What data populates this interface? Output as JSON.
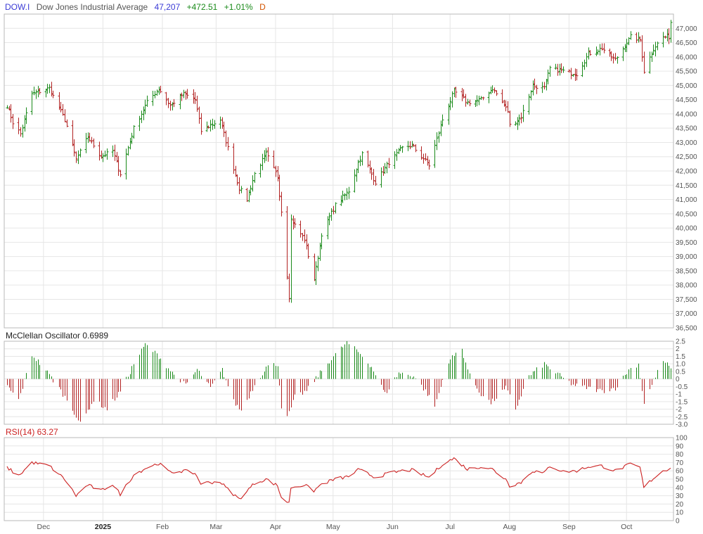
{
  "header": {
    "symbol": "DOW.I",
    "name": "Dow Jones Industrial Average",
    "last": "47,207",
    "change": "+472.51",
    "change_pct": "+1.01%",
    "period": "D"
  },
  "colors": {
    "up": "#1a8a1a",
    "down": "#b22222",
    "symbol": "#3b3bd6",
    "last": "#3b3bd6",
    "change": "#1a8a1a",
    "period": "#d35400",
    "rsi_line": "#cc2222",
    "rsi_title": "#cc2222"
  },
  "x_axis": {
    "labels": [
      {
        "text": "Dec",
        "day": 19
      },
      {
        "text": "2025",
        "day": 50,
        "bold": true
      },
      {
        "text": "Feb",
        "day": 81
      },
      {
        "text": "Mar",
        "day": 109
      },
      {
        "text": "Apr",
        "day": 140
      },
      {
        "text": "May",
        "day": 170
      },
      {
        "text": "Jun",
        "day": 201
      },
      {
        "text": "Jul",
        "day": 231
      },
      {
        "text": "Aug",
        "day": 262
      },
      {
        "text": "Sep",
        "day": 293
      },
      {
        "text": "Oct",
        "day": 323
      }
    ],
    "start_date": "2024-11-12",
    "end_date": "2025-10-24"
  },
  "chart_data": [
    {
      "type": "ohlc",
      "title": "Dow Jones Industrial Average",
      "ylim": [
        36500,
        47500
      ],
      "yticks": [
        "36,500",
        "37,000",
        "37,500",
        "38,000",
        "38,500",
        "39,000",
        "39,500",
        "40,000",
        "40,500",
        "41,000",
        "41,500",
        "42,000",
        "42,500",
        "43,000",
        "43,500",
        "44,000",
        "44,500",
        "45,000",
        "45,500",
        "46,000",
        "46,500",
        "47,000"
      ],
      "major_ticks": [
        "38,000",
        "40,000",
        "42,000",
        "44,000",
        "46,000"
      ],
      "anchors": [
        [
          "2024-11-12",
          44300
        ],
        [
          "2024-11-15",
          43700
        ],
        [
          "2024-11-19",
          43300
        ],
        [
          "2024-11-25",
          44700
        ],
        [
          "2024-12-04",
          44900
        ],
        [
          "2024-12-12",
          43800
        ],
        [
          "2024-12-18",
          42400
        ],
        [
          "2024-12-24",
          43200
        ],
        [
          "2024-12-31",
          42500
        ],
        [
          "2025-01-06",
          42700
        ],
        [
          "2025-01-10",
          41900
        ],
        [
          "2025-01-17",
          43500
        ],
        [
          "2025-01-24",
          44400
        ],
        [
          "2025-01-30",
          44900
        ],
        [
          "2025-02-05",
          44300
        ],
        [
          "2025-02-12",
          44700
        ],
        [
          "2025-02-18",
          44500
        ],
        [
          "2025-02-21",
          43400
        ],
        [
          "2025-03-03",
          43800
        ],
        [
          "2025-03-07",
          42800
        ],
        [
          "2025-03-13",
          41400
        ],
        [
          "2025-03-17",
          41000
        ],
        [
          "2025-03-21",
          41900
        ],
        [
          "2025-03-27",
          42600
        ],
        [
          "2025-04-02",
          41800
        ],
        [
          "2025-04-04",
          40600
        ],
        [
          "2025-04-08",
          37600
        ],
        [
          "2025-04-09",
          40300
        ],
        [
          "2025-04-16",
          39600
        ],
        [
          "2025-04-21",
          38200
        ],
        [
          "2025-04-25",
          39800
        ],
        [
          "2025-05-02",
          40800
        ],
        [
          "2025-05-09",
          41300
        ],
        [
          "2025-05-14",
          42300
        ],
        [
          "2025-05-16",
          42600
        ],
        [
          "2025-05-23",
          41600
        ],
        [
          "2025-05-30",
          42300
        ],
        [
          "2025-06-06",
          42800
        ],
        [
          "2025-06-11",
          42900
        ],
        [
          "2025-06-20",
          42200
        ],
        [
          "2025-06-27",
          43800
        ],
        [
          "2025-07-03",
          44800
        ],
        [
          "2025-07-10",
          44400
        ],
        [
          "2025-07-17",
          44500
        ],
        [
          "2025-07-23",
          44900
        ],
        [
          "2025-07-31",
          44100
        ],
        [
          "2025-08-01",
          43600
        ],
        [
          "2025-08-07",
          43900
        ],
        [
          "2025-08-13",
          45000
        ],
        [
          "2025-08-19",
          44900
        ],
        [
          "2025-08-22",
          45600
        ],
        [
          "2025-08-29",
          45500
        ],
        [
          "2025-09-05",
          45400
        ],
        [
          "2025-09-11",
          46100
        ],
        [
          "2025-09-18",
          46300
        ],
        [
          "2025-09-25",
          45900
        ],
        [
          "2025-10-03",
          46700
        ],
        [
          "2025-10-08",
          46600
        ],
        [
          "2025-10-10",
          45500
        ],
        [
          "2025-10-15",
          46300
        ],
        [
          "2025-10-20",
          46700
        ],
        [
          "2025-10-23",
          46700
        ],
        [
          "2025-10-24",
          47207
        ]
      ]
    },
    {
      "type": "histogram",
      "title": "McClellan Oscillator 0.6989",
      "ylim": [
        -3.0,
        2.5
      ],
      "yticks": [
        "2.5",
        "2",
        "1.5",
        "1.0",
        "0.5",
        "0",
        "-0.5",
        "-1",
        "-1.5",
        "-2",
        "-2.5",
        "-3.0"
      ],
      "anchors": [
        [
          "2024-11-12",
          -0.5
        ],
        [
          "2024-11-18",
          -1.4
        ],
        [
          "2024-11-25",
          1.6
        ],
        [
          "2024-12-02",
          0.6
        ],
        [
          "2024-12-09",
          -0.6
        ],
        [
          "2024-12-17",
          -2.2
        ],
        [
          "2024-12-20",
          -3.0
        ],
        [
          "2024-12-27",
          -1.4
        ],
        [
          "2025-01-03",
          -2.0
        ],
        [
          "2025-01-10",
          -0.8
        ],
        [
          "2025-01-17",
          1.0
        ],
        [
          "2025-01-23",
          2.3
        ],
        [
          "2025-01-30",
          1.5
        ],
        [
          "2025-02-06",
          0.4
        ],
        [
          "2025-02-13",
          -0.4
        ],
        [
          "2025-02-19",
          0.6
        ],
        [
          "2025-02-26",
          -0.6
        ],
        [
          "2025-03-04",
          0.6
        ],
        [
          "2025-03-10",
          -1.5
        ],
        [
          "2025-03-14",
          -2.1
        ],
        [
          "2025-03-21",
          -0.4
        ],
        [
          "2025-03-27",
          0.8
        ],
        [
          "2025-04-02",
          1.0
        ],
        [
          "2025-04-04",
          -1.8
        ],
        [
          "2025-04-07",
          -2.6
        ],
        [
          "2025-04-11",
          -1.2
        ],
        [
          "2025-04-17",
          -0.8
        ],
        [
          "2025-04-24",
          0.4
        ],
        [
          "2025-05-01",
          1.5
        ],
        [
          "2025-05-08",
          2.4
        ],
        [
          "2025-05-14",
          1.8
        ],
        [
          "2025-05-21",
          0.8
        ],
        [
          "2025-05-28",
          -1.0
        ],
        [
          "2025-06-04",
          0.4
        ],
        [
          "2025-06-12",
          0.2
        ],
        [
          "2025-06-18",
          -0.8
        ],
        [
          "2025-06-23",
          -1.8
        ],
        [
          "2025-06-30",
          1.2
        ],
        [
          "2025-07-07",
          2.0
        ],
        [
          "2025-07-11",
          0.2
        ],
        [
          "2025-07-17",
          -1.0
        ],
        [
          "2025-07-22",
          -1.6
        ],
        [
          "2025-07-30",
          -0.6
        ],
        [
          "2025-08-04",
          -2.0
        ],
        [
          "2025-08-11",
          0.2
        ],
        [
          "2025-08-19",
          1.0
        ],
        [
          "2025-08-25",
          0.4
        ],
        [
          "2025-09-03",
          -0.4
        ],
        [
          "2025-09-11",
          -0.6
        ],
        [
          "2025-09-18",
          -0.8
        ],
        [
          "2025-09-25",
          -0.6
        ],
        [
          "2025-10-02",
          0.6
        ],
        [
          "2025-10-07",
          1.0
        ],
        [
          "2025-10-10",
          -1.6
        ],
        [
          "2025-10-16",
          0.2
        ],
        [
          "2025-10-20",
          1.2
        ],
        [
          "2025-10-24",
          0.6989
        ]
      ]
    },
    {
      "type": "line",
      "title": "RSI(14) 63.27",
      "ylim": [
        0,
        100
      ],
      "yticks": [
        "100",
        "90",
        "80",
        "70",
        "60",
        "50",
        "40",
        "30",
        "20",
        "10",
        "0"
      ],
      "major_ticks": [
        "100",
        "70",
        "50",
        "30",
        "0"
      ],
      "anchors": [
        [
          "2024-11-12",
          64
        ],
        [
          "2024-11-18",
          54
        ],
        [
          "2024-11-25",
          70
        ],
        [
          "2024-12-04",
          66
        ],
        [
          "2024-12-12",
          50
        ],
        [
          "2024-12-18",
          30
        ],
        [
          "2024-12-24",
          43
        ],
        [
          "2024-12-31",
          36
        ],
        [
          "2025-01-06",
          44
        ],
        [
          "2025-01-10",
          32
        ],
        [
          "2025-01-17",
          55
        ],
        [
          "2025-01-24",
          64
        ],
        [
          "2025-01-30",
          69
        ],
        [
          "2025-02-05",
          58
        ],
        [
          "2025-02-12",
          60
        ],
        [
          "2025-02-18",
          57
        ],
        [
          "2025-02-21",
          45
        ],
        [
          "2025-03-03",
          47
        ],
        [
          "2025-03-07",
          38
        ],
        [
          "2025-03-13",
          26
        ],
        [
          "2025-03-21",
          45
        ],
        [
          "2025-03-27",
          50
        ],
        [
          "2025-04-02",
          42
        ],
        [
          "2025-04-04",
          28
        ],
        [
          "2025-04-08",
          21
        ],
        [
          "2025-04-09",
          40
        ],
        [
          "2025-04-16",
          43
        ],
        [
          "2025-04-21",
          36
        ],
        [
          "2025-04-25",
          44
        ],
        [
          "2025-05-02",
          50
        ],
        [
          "2025-05-09",
          53
        ],
        [
          "2025-05-14",
          61
        ],
        [
          "2025-05-16",
          60
        ],
        [
          "2025-05-23",
          52
        ],
        [
          "2025-05-30",
          57
        ],
        [
          "2025-06-06",
          60
        ],
        [
          "2025-06-11",
          61
        ],
        [
          "2025-06-20",
          52
        ],
        [
          "2025-06-27",
          68
        ],
        [
          "2025-07-03",
          75
        ],
        [
          "2025-07-10",
          62
        ],
        [
          "2025-07-17",
          65
        ],
        [
          "2025-07-23",
          62
        ],
        [
          "2025-07-31",
          48
        ],
        [
          "2025-08-01",
          42
        ],
        [
          "2025-08-07",
          46
        ],
        [
          "2025-08-13",
          60
        ],
        [
          "2025-08-19",
          57
        ],
        [
          "2025-08-22",
          66
        ],
        [
          "2025-08-29",
          59
        ],
        [
          "2025-09-05",
          60
        ],
        [
          "2025-09-11",
          65
        ],
        [
          "2025-09-18",
          66
        ],
        [
          "2025-09-25",
          60
        ],
        [
          "2025-10-03",
          68
        ],
        [
          "2025-10-08",
          64
        ],
        [
          "2025-10-10",
          40
        ],
        [
          "2025-10-15",
          51
        ],
        [
          "2025-10-20",
          60
        ],
        [
          "2025-10-24",
          63.27
        ]
      ]
    }
  ]
}
